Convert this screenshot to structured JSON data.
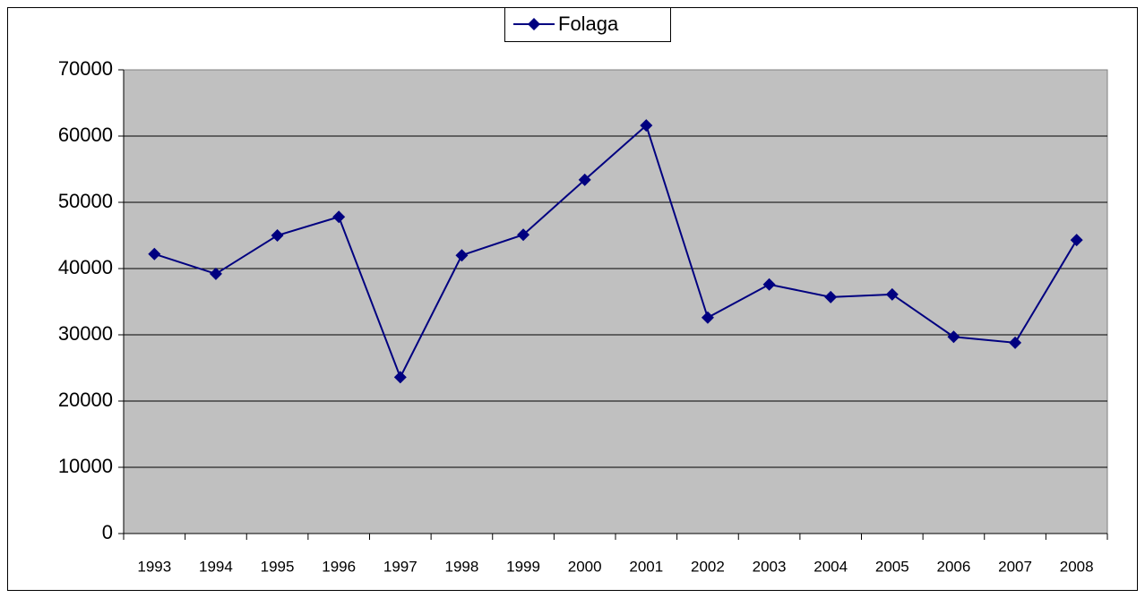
{
  "chart_data": {
    "type": "line",
    "categories": [
      "1993",
      "1994",
      "1995",
      "1996",
      "1997",
      "1998",
      "1999",
      "2000",
      "2001",
      "2002",
      "2003",
      "2004",
      "2005",
      "2006",
      "2007",
      "2008"
    ],
    "series": [
      {
        "name": "Folaga",
        "color": "#000080",
        "values": [
          42200,
          39200,
          45000,
          47800,
          23600,
          42000,
          45100,
          53400,
          61600,
          32600,
          37600,
          35700,
          36100,
          29700,
          28800,
          44300
        ]
      }
    ],
    "ylim": [
      0,
      70000
    ],
    "yticks": [
      0,
      10000,
      20000,
      30000,
      40000,
      50000,
      60000,
      70000
    ],
    "grid": true,
    "legend": "top"
  }
}
